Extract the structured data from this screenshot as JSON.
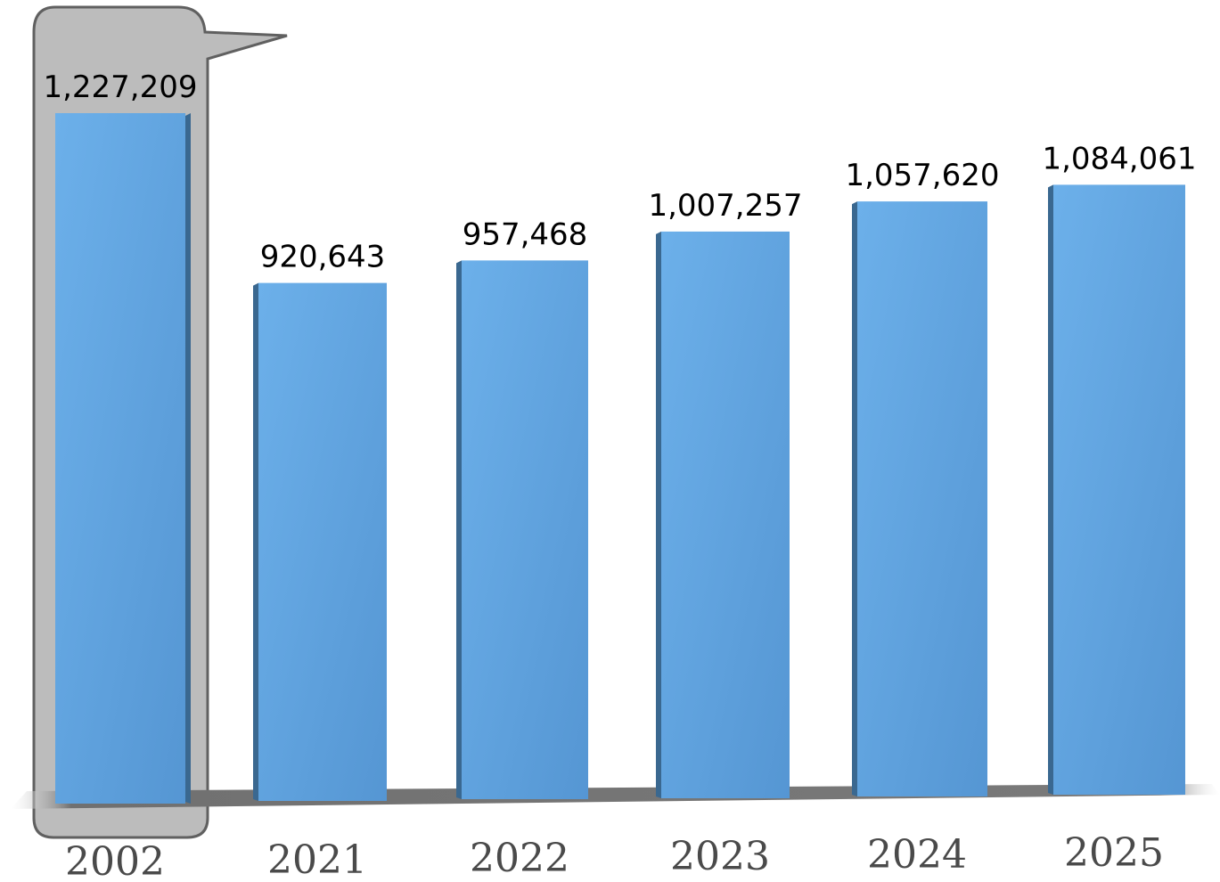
{
  "chart_data": {
    "type": "bar",
    "categories": [
      "2002",
      "2021",
      "2022",
      "2023",
      "2024",
      "2025"
    ],
    "values": [
      1227209,
      920643,
      957468,
      1007257,
      1057620,
      1084061
    ],
    "value_labels": [
      "1,227,209",
      "920,643",
      "957,468",
      "1,007,257",
      "1,057,620",
      "1,084,061"
    ],
    "highlighted_category": "2002",
    "ylim": [
      0,
      1227209
    ],
    "grid": false,
    "colors": {
      "bar": "#5b9bd5",
      "bar_side": "#3a6890",
      "floor": "#7f7f7f",
      "highlight_fill": "#a6a6a6",
      "highlight_stroke": "#666666"
    }
  }
}
